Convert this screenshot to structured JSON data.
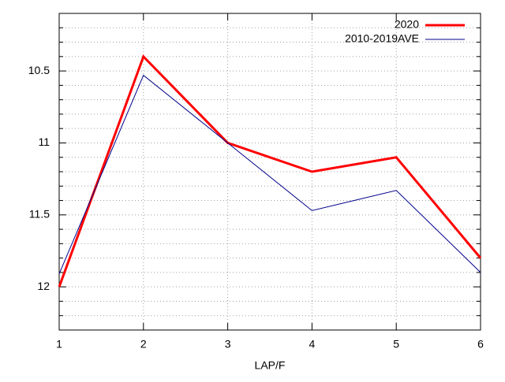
{
  "chart_data": {
    "type": "line",
    "xlabel": "LAP/F",
    "x": [
      1,
      2,
      3,
      4,
      5,
      6
    ],
    "series": [
      {
        "name": "2020",
        "color": "#ff0000",
        "values": [
          12.0,
          10.4,
          11.0,
          11.2,
          11.1,
          11.8
        ]
      },
      {
        "name": "2010-2019AVE",
        "color": "#00008b",
        "values": [
          11.91,
          10.53,
          11.0,
          11.47,
          11.33,
          11.9
        ]
      }
    ],
    "xlim": [
      1,
      6
    ],
    "xticks": [
      1,
      2,
      3,
      4,
      5,
      6
    ],
    "ylim": [
      12.3,
      10.1
    ],
    "yticks": [
      10.5,
      11,
      11.5,
      12
    ],
    "yminorticks": [
      10.2,
      10.3,
      10.4,
      10.6,
      10.7,
      10.8,
      10.9,
      11.1,
      11.2,
      11.3,
      11.4,
      11.6,
      11.7,
      11.8,
      11.9,
      12.1,
      12.2
    ],
    "grid": true,
    "legend": "top-right"
  }
}
